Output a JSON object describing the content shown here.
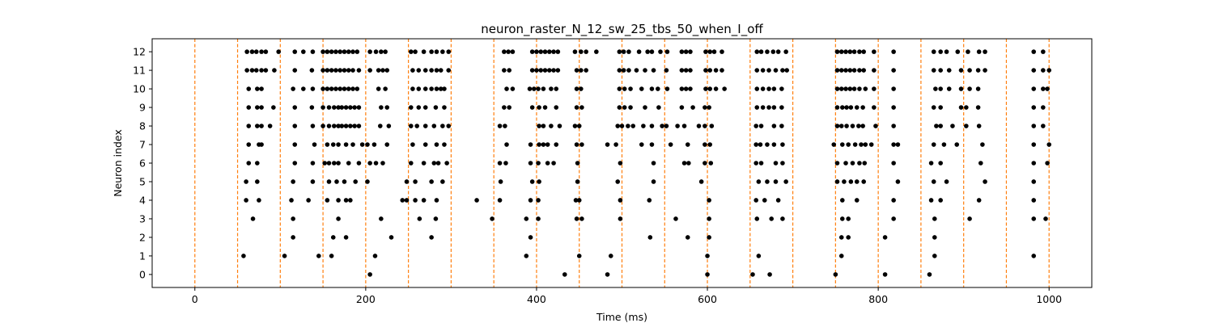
{
  "chart_data": {
    "type": "scatter",
    "title": "neuron_raster_N_12_sw_25_tbs_50_when_I_off",
    "xlabel": "Time (ms)",
    "ylabel": "Neuron index",
    "xlim": [
      -50,
      1050
    ],
    "ylim": [
      -0.7,
      12.7
    ],
    "xticks": [
      0,
      200,
      400,
      600,
      800,
      1000
    ],
    "yticks": [
      0,
      1,
      2,
      3,
      4,
      5,
      6,
      7,
      8,
      9,
      10,
      11,
      12
    ],
    "grid": false,
    "marker_color": "#000000",
    "vline_color": "#ff7f0e",
    "vlines": [
      0,
      50,
      100,
      150,
      200,
      250,
      300,
      350,
      400,
      450,
      500,
      550,
      600,
      650,
      700,
      750,
      800,
      850,
      900,
      950,
      1000
    ],
    "spikes": [
      {
        "neuron": 0,
        "times": [
          205,
          433,
          483,
          600,
          653,
          673,
          750,
          808,
          860
        ]
      },
      {
        "neuron": 1,
        "times": [
          57,
          105,
          145,
          160,
          211,
          388,
          450,
          487,
          600,
          660,
          757,
          866,
          982
        ]
      },
      {
        "neuron": 2,
        "times": [
          115,
          162,
          177,
          230,
          277,
          393,
          533,
          577,
          602,
          757,
          765,
          808,
          866
        ]
      },
      {
        "neuron": 3,
        "times": [
          68,
          115,
          168,
          218,
          263,
          282,
          348,
          388,
          402,
          447,
          453,
          498,
          563,
          602,
          658,
          675,
          688,
          758,
          765,
          818,
          866,
          907,
          982,
          996
        ]
      },
      {
        "neuron": 4,
        "times": [
          60,
          75,
          113,
          133,
          155,
          168,
          177,
          182,
          243,
          248,
          258,
          268,
          283,
          330,
          357,
          393,
          402,
          446,
          450,
          498,
          532,
          602,
          657,
          667,
          683,
          758,
          775,
          818,
          862,
          873,
          918,
          982
        ]
      },
      {
        "neuron": 5,
        "times": [
          60,
          73,
          115,
          138,
          157,
          166,
          175,
          188,
          202,
          248,
          258,
          277,
          290,
          358,
          395,
          403,
          448,
          495,
          537,
          593,
          660,
          670,
          680,
          692,
          752,
          760,
          768,
          775,
          783,
          823,
          865,
          880,
          925,
          982
        ]
      },
      {
        "neuron": 6,
        "times": [
          63,
          73,
          117,
          138,
          152,
          157,
          163,
          168,
          180,
          192,
          205,
          212,
          220,
          253,
          268,
          280,
          285,
          295,
          357,
          364,
          393,
          402,
          413,
          420,
          448,
          498,
          537,
          573,
          578,
          597,
          604,
          657,
          663,
          680,
          688,
          752,
          762,
          770,
          778,
          784,
          818,
          862,
          873,
          920,
          982,
          998
        ]
      },
      {
        "neuron": 7,
        "times": [
          63,
          75,
          78,
          117,
          140,
          155,
          162,
          168,
          177,
          185,
          196,
          202,
          210,
          225,
          255,
          270,
          283,
          292,
          365,
          393,
          403,
          408,
          413,
          423,
          447,
          453,
          483,
          493,
          523,
          535,
          557,
          577,
          597,
          603,
          657,
          662,
          670,
          678,
          688,
          748,
          758,
          765,
          773,
          780,
          785,
          792,
          818,
          823,
          865,
          877,
          892,
          922,
          982,
          1000
        ]
      },
      {
        "neuron": 8,
        "times": [
          63,
          73,
          78,
          88,
          117,
          138,
          150,
          157,
          163,
          168,
          172,
          177,
          182,
          187,
          192,
          217,
          227,
          253,
          260,
          270,
          280,
          290,
          297,
          357,
          363,
          403,
          408,
          417,
          427,
          445,
          450,
          495,
          500,
          507,
          513,
          525,
          535,
          547,
          552,
          565,
          573,
          590,
          597,
          605,
          657,
          663,
          678,
          687,
          752,
          757,
          763,
          770,
          777,
          782,
          797,
          818,
          868,
          873,
          887,
          903,
          918,
          982,
          993
        ]
      },
      {
        "neuron": 9,
        "times": [
          63,
          73,
          78,
          92,
          117,
          137,
          150,
          157,
          163,
          168,
          172,
          177,
          182,
          187,
          192,
          218,
          225,
          253,
          262,
          270,
          282,
          292,
          362,
          368,
          395,
          403,
          410,
          423,
          447,
          453,
          497,
          503,
          510,
          527,
          543,
          570,
          583,
          597,
          602,
          658,
          665,
          672,
          678,
          687,
          752,
          758,
          763,
          768,
          775,
          782,
          795,
          818,
          865,
          873,
          897,
          903,
          917,
          982,
          993
        ]
      },
      {
        "neuron": 10,
        "times": [
          63,
          73,
          78,
          115,
          127,
          138,
          150,
          155,
          160,
          165,
          170,
          175,
          180,
          185,
          190,
          215,
          223,
          255,
          262,
          270,
          277,
          283,
          288,
          292,
          365,
          372,
          392,
          397,
          402,
          408,
          417,
          423,
          447,
          452,
          497,
          503,
          510,
          523,
          535,
          542,
          553,
          570,
          575,
          580,
          598,
          603,
          610,
          620,
          658,
          665,
          672,
          678,
          687,
          752,
          757,
          762,
          767,
          772,
          778,
          785,
          795,
          818,
          867,
          873,
          883,
          897,
          907,
          917,
          982,
          993,
          998
        ]
      },
      {
        "neuron": 11,
        "times": [
          61,
          67,
          72,
          78,
          83,
          93,
          117,
          137,
          150,
          155,
          160,
          165,
          170,
          175,
          180,
          185,
          192,
          205,
          215,
          220,
          225,
          255,
          262,
          270,
          277,
          283,
          288,
          297,
          362,
          368,
          395,
          400,
          405,
          410,
          415,
          420,
          425,
          447,
          452,
          458,
          497,
          502,
          508,
          517,
          527,
          537,
          552,
          570,
          575,
          580,
          598,
          603,
          610,
          617,
          658,
          665,
          672,
          680,
          688,
          693,
          752,
          757,
          762,
          767,
          772,
          778,
          783,
          795,
          818,
          865,
          873,
          883,
          897,
          907,
          917,
          925,
          982,
          993,
          1000
        ]
      },
      {
        "neuron": 12,
        "times": [
          61,
          67,
          72,
          78,
          83,
          98,
          117,
          127,
          138,
          150,
          155,
          160,
          165,
          170,
          175,
          180,
          185,
          190,
          205,
          212,
          218,
          223,
          253,
          258,
          268,
          277,
          283,
          290,
          297,
          362,
          367,
          372,
          395,
          400,
          405,
          410,
          415,
          420,
          425,
          445,
          452,
          458,
          470,
          497,
          502,
          508,
          520,
          530,
          535,
          545,
          553,
          570,
          575,
          580,
          598,
          603,
          608,
          617,
          658,
          663,
          670,
          677,
          683,
          692,
          752,
          757,
          762,
          767,
          772,
          778,
          783,
          795,
          818,
          865,
          873,
          880,
          893,
          905,
          918,
          925,
          982,
          993
        ]
      }
    ]
  }
}
